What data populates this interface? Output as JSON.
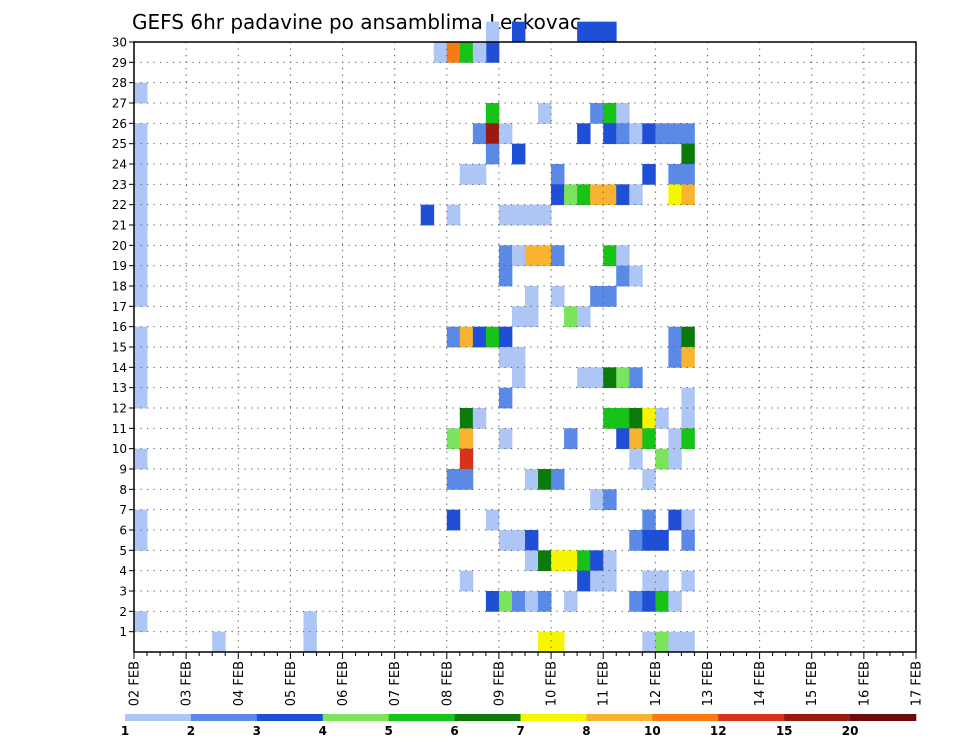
{
  "chart_data": {
    "type": "heatmap",
    "title": "GEFS 6hr padavine po ansamblima Leskovac",
    "x_tick_labels": [
      "02 FEB",
      "03 FEB",
      "04 FEB",
      "05 FEB",
      "06 FEB",
      "07 FEB",
      "08 FEB",
      "09 FEB",
      "10 FEB",
      "11 FEB",
      "12 FEB",
      "13 FEB",
      "14 FEB",
      "15 FEB",
      "16 FEB",
      "17 FEB"
    ],
    "y_tick_labels": [
      "1",
      "2",
      "3",
      "4",
      "5",
      "6",
      "7",
      "8",
      "9",
      "10",
      "11",
      "12",
      "13",
      "14",
      "15",
      "16",
      "17",
      "18",
      "19",
      "20",
      "21",
      "22",
      "23",
      "24",
      "25",
      "26",
      "27",
      "28",
      "29",
      "30"
    ],
    "x_range": [
      0,
      60
    ],
    "y_range": [
      0,
      30
    ],
    "grid": true,
    "legend": {
      "labels": [
        "1",
        "2",
        "3",
        "4",
        "5",
        "6",
        "7",
        "8",
        "10",
        "12",
        "15",
        "20"
      ],
      "colors": [
        "#adc6f5",
        "#5b8ae6",
        "#1f4fd6",
        "#7ae45c",
        "#18c318",
        "#0a7a0a",
        "#f6f600",
        "#f8b430",
        "#f87a14",
        "#d8321a",
        "#9a1a10",
        "#6e0a0a"
      ]
    },
    "cells": [
      [
        27,
        30,
        0
      ],
      [
        27,
        29,
        2
      ],
      [
        29,
        30,
        2
      ],
      [
        35,
        30,
        0
      ],
      [
        34,
        30,
        2
      ],
      [
        35,
        30,
        2
      ],
      [
        36,
        30,
        2
      ],
      [
        23,
        29,
        0
      ],
      [
        24,
        29,
        8
      ],
      [
        25,
        29,
        4
      ],
      [
        26,
        29,
        0
      ],
      [
        0,
        27,
        0
      ],
      [
        27,
        26,
        4
      ],
      [
        31,
        26,
        0
      ],
      [
        35,
        26,
        1
      ],
      [
        36,
        26,
        4
      ],
      [
        37,
        26,
        0
      ],
      [
        0,
        25,
        0
      ],
      [
        26,
        25,
        1
      ],
      [
        27,
        25,
        10
      ],
      [
        28,
        25,
        0
      ],
      [
        34,
        25,
        2
      ],
      [
        36,
        25,
        2
      ],
      [
        37,
        25,
        1
      ],
      [
        38,
        25,
        0
      ],
      [
        39,
        25,
        2
      ],
      [
        40,
        25,
        1
      ],
      [
        41,
        25,
        1
      ],
      [
        42,
        25,
        1
      ],
      [
        0,
        24,
        0
      ],
      [
        27,
        24,
        1
      ],
      [
        29,
        24,
        2
      ],
      [
        42,
        24,
        5
      ],
      [
        0,
        23,
        0
      ],
      [
        25,
        23,
        0
      ],
      [
        26,
        23,
        0
      ],
      [
        32,
        23,
        1
      ],
      [
        39,
        23,
        2
      ],
      [
        41,
        23,
        1
      ],
      [
        42,
        23,
        1
      ],
      [
        0,
        22,
        0
      ],
      [
        32,
        22,
        2
      ],
      [
        33,
        22,
        3
      ],
      [
        34,
        22,
        4
      ],
      [
        35,
        22,
        7
      ],
      [
        36,
        22,
        7
      ],
      [
        37,
        22,
        2
      ],
      [
        38,
        22,
        0
      ],
      [
        41,
        22,
        6
      ],
      [
        42,
        22,
        7
      ],
      [
        0,
        21,
        0
      ],
      [
        22,
        21,
        2
      ],
      [
        24,
        21,
        0
      ],
      [
        28,
        21,
        0
      ],
      [
        29,
        21,
        0
      ],
      [
        30,
        21,
        0
      ],
      [
        31,
        21,
        0
      ],
      [
        0,
        20,
        0
      ],
      [
        0,
        19,
        0
      ],
      [
        28,
        19,
        1
      ],
      [
        29,
        19,
        0
      ],
      [
        30,
        19,
        7
      ],
      [
        31,
        19,
        7
      ],
      [
        32,
        19,
        1
      ],
      [
        36,
        19,
        4
      ],
      [
        37,
        19,
        0
      ],
      [
        0,
        18,
        0
      ],
      [
        28,
        18,
        1
      ],
      [
        37,
        18,
        1
      ],
      [
        38,
        18,
        0
      ],
      [
        0,
        17,
        0
      ],
      [
        30,
        17,
        0
      ],
      [
        32,
        17,
        0
      ],
      [
        35,
        17,
        1
      ],
      [
        36,
        17,
        1
      ],
      [
        29,
        16,
        0
      ],
      [
        30,
        16,
        0
      ],
      [
        33,
        16,
        3
      ],
      [
        34,
        16,
        0
      ],
      [
        0,
        15,
        0
      ],
      [
        24,
        15,
        1
      ],
      [
        25,
        15,
        7
      ],
      [
        26,
        15,
        2
      ],
      [
        27,
        15,
        4
      ],
      [
        28,
        15,
        2
      ],
      [
        41,
        15,
        1
      ],
      [
        42,
        15,
        5
      ],
      [
        0,
        14,
        0
      ],
      [
        28,
        14,
        0
      ],
      [
        29,
        14,
        0
      ],
      [
        41,
        14,
        1
      ],
      [
        42,
        14,
        7
      ],
      [
        0,
        13,
        0
      ],
      [
        29,
        13,
        0
      ],
      [
        34,
        13,
        0
      ],
      [
        35,
        13,
        0
      ],
      [
        36,
        13,
        5
      ],
      [
        37,
        13,
        3
      ],
      [
        38,
        13,
        1
      ],
      [
        0,
        12,
        0
      ],
      [
        28,
        12,
        1
      ],
      [
        42,
        12,
        0
      ],
      [
        25,
        11,
        5
      ],
      [
        26,
        11,
        0
      ],
      [
        36,
        11,
        4
      ],
      [
        37,
        11,
        4
      ],
      [
        38,
        11,
        5
      ],
      [
        39,
        11,
        6
      ],
      [
        40,
        11,
        0
      ],
      [
        42,
        11,
        0
      ],
      [
        24,
        10,
        3
      ],
      [
        25,
        10,
        7
      ],
      [
        28,
        10,
        0
      ],
      [
        33,
        10,
        1
      ],
      [
        37,
        10,
        2
      ],
      [
        38,
        10,
        7
      ],
      [
        39,
        10,
        4
      ],
      [
        41,
        10,
        0
      ],
      [
        42,
        10,
        4
      ],
      [
        0,
        9,
        0
      ],
      [
        25,
        9,
        9
      ],
      [
        38,
        9,
        0
      ],
      [
        40,
        9,
        3
      ],
      [
        41,
        9,
        0
      ],
      [
        24,
        8,
        1
      ],
      [
        25,
        8,
        1
      ],
      [
        30,
        8,
        0
      ],
      [
        31,
        8,
        5
      ],
      [
        32,
        8,
        1
      ],
      [
        39,
        8,
        0
      ],
      [
        35,
        7,
        0
      ],
      [
        36,
        7,
        1
      ],
      [
        0,
        6,
        0
      ],
      [
        24,
        6,
        2
      ],
      [
        27,
        6,
        0
      ],
      [
        39,
        6,
        1
      ],
      [
        41,
        6,
        2
      ],
      [
        42,
        6,
        0
      ],
      [
        0,
        5,
        0
      ],
      [
        28,
        5,
        0
      ],
      [
        29,
        5,
        0
      ],
      [
        30,
        5,
        2
      ],
      [
        38,
        5,
        1
      ],
      [
        39,
        5,
        2
      ],
      [
        40,
        5,
        2
      ],
      [
        42,
        5,
        1
      ],
      [
        30,
        4,
        0
      ],
      [
        31,
        4,
        5
      ],
      [
        32,
        4,
        6
      ],
      [
        33,
        4,
        6
      ],
      [
        34,
        4,
        4
      ],
      [
        35,
        4,
        2
      ],
      [
        36,
        4,
        0
      ],
      [
        25,
        3,
        0
      ],
      [
        34,
        3,
        2
      ],
      [
        35,
        3,
        0
      ],
      [
        36,
        3,
        0
      ],
      [
        39,
        3,
        0
      ],
      [
        40,
        3,
        0
      ],
      [
        42,
        3,
        0
      ],
      [
        27,
        2,
        2
      ],
      [
        28,
        2,
        3
      ],
      [
        29,
        2,
        1
      ],
      [
        30,
        2,
        0
      ],
      [
        31,
        2,
        1
      ],
      [
        33,
        2,
        0
      ],
      [
        38,
        2,
        1
      ],
      [
        39,
        2,
        2
      ],
      [
        40,
        2,
        4
      ],
      [
        41,
        2,
        0
      ],
      [
        0,
        1,
        0
      ],
      [
        13,
        1,
        0
      ],
      [
        6,
        0,
        0
      ],
      [
        13,
        0,
        0
      ],
      [
        31,
        0,
        6
      ],
      [
        32,
        0,
        6
      ],
      [
        39,
        0,
        0
      ],
      [
        40,
        0,
        3
      ],
      [
        41,
        0,
        0
      ],
      [
        42,
        0,
        0
      ]
    ]
  }
}
